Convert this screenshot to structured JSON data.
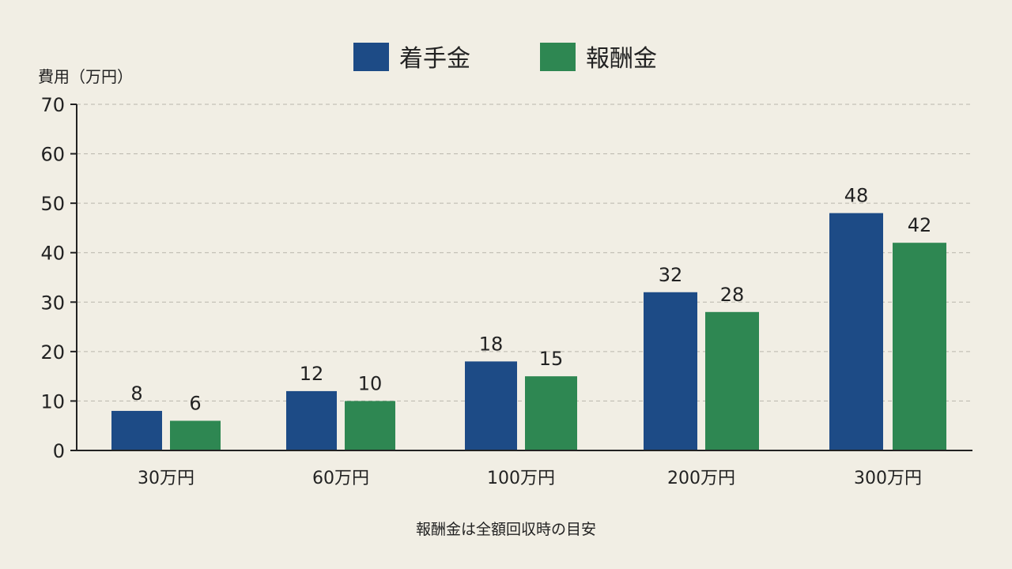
{
  "chart_data": {
    "type": "bar",
    "categories": [
      "30万円",
      "60万円",
      "100万円",
      "200万円",
      "300万円"
    ],
    "series": [
      {
        "name": "着手金",
        "values": [
          8,
          12,
          18,
          32,
          48
        ],
        "color": "#1d4b86"
      },
      {
        "name": "報酬金",
        "values": [
          6,
          10,
          15,
          28,
          42
        ],
        "color": "#2e8752"
      }
    ],
    "data_labels": {
      "着手金": [
        "8",
        "12",
        "18",
        "32",
        "48"
      ],
      "報酬金": [
        "6",
        "10",
        "15",
        "28",
        "42"
      ]
    },
    "ylabel": "費用（万円）",
    "ylim": [
      0,
      70
    ],
    "yticks": [
      0,
      10,
      20,
      30,
      40,
      50,
      60,
      70
    ],
    "grid": true,
    "legend_position": "top-center",
    "note": "報酬金は全額回収時の目安"
  }
}
